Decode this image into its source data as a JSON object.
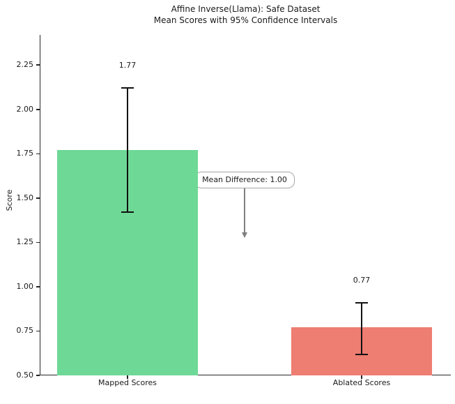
{
  "chart_data": {
    "type": "bar",
    "title": "Affine Inverse(Llama): Safe Dataset\nMean Scores with 95% Confidence Intervals",
    "title_line1": "Affine Inverse(Llama): Safe Dataset",
    "title_line2": "Mean Scores with 95% Confidence Intervals",
    "xlabel": "",
    "ylabel": "Score",
    "categories": [
      "Mapped Scores",
      "Ablated Scores"
    ],
    "values": [
      1.77,
      0.77
    ],
    "value_labels": [
      "1.77",
      "0.77"
    ],
    "error_type": "95% confidence interval",
    "error_low": [
      1.42,
      0.62
    ],
    "error_high": [
      2.12,
      0.91
    ],
    "bar_colors": [
      "#6ed896",
      "#ee7d72"
    ],
    "error_color": "#111111",
    "ylim": [
      0.5,
      2.42
    ],
    "yticks": [
      0.5,
      0.75,
      1.0,
      1.25,
      1.5,
      1.75,
      2.0,
      2.25
    ],
    "ytick_labels": [
      "0.50",
      "0.75",
      "1.00",
      "1.25",
      "1.50",
      "1.75",
      "2.00",
      "2.25"
    ],
    "grid": false,
    "legend_position": "none",
    "annotation": {
      "text": "Mean Difference: 1.00",
      "mean_difference": 1.0,
      "text_y_value": 1.6,
      "arrow_tip_y_value": 1.275,
      "arrow_color": "#7f7f7f"
    }
  }
}
